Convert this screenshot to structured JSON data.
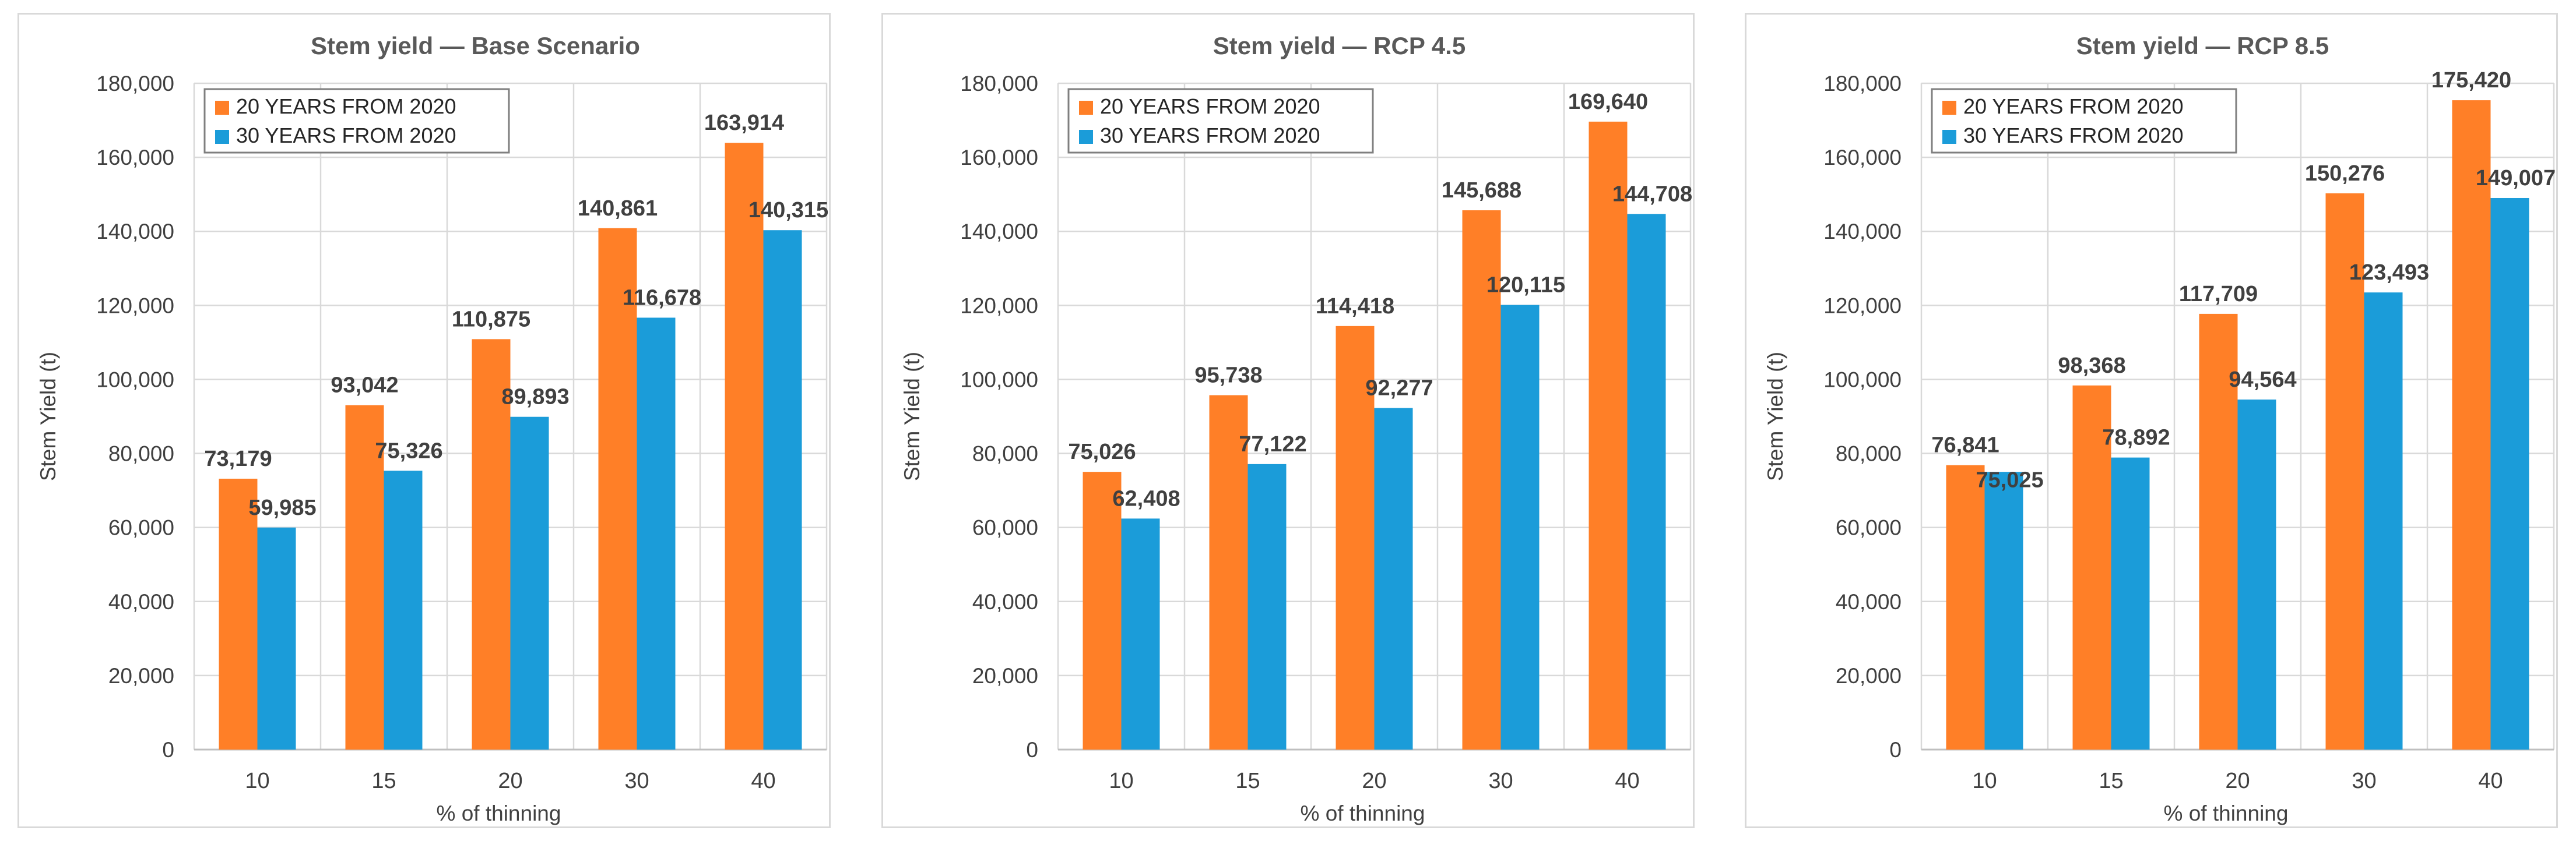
{
  "colors": {
    "series_20": "#FF7F27",
    "series_30": "#1B9CD9"
  },
  "chart_data": [
    {
      "type": "bar",
      "title": "Stem yield — Base Scenario",
      "xlabel": "% of thinning",
      "ylabel": "Stem Yield (t)",
      "ylim": [
        0,
        180000
      ],
      "yticks": [
        "0",
        "20,000",
        "40,000",
        "60,000",
        "80,000",
        "100,000",
        "120,000",
        "140,000",
        "160,000",
        "180,000"
      ],
      "grid": true,
      "legend_position": "top-left",
      "categories": [
        "10",
        "15",
        "20",
        "30",
        "40"
      ],
      "series": [
        {
          "name": "20 YEARS FROM 2020",
          "values": [
            73179,
            93042,
            110875,
            140861,
            163914
          ],
          "labels": [
            "73,179",
            "93,042",
            "110,875",
            "140,861",
            "163,914"
          ]
        },
        {
          "name": "30 YEARS FROM 2020",
          "values": [
            59985,
            75326,
            89893,
            116678,
            140315
          ],
          "labels": [
            "59,985",
            "75,326",
            "89,893",
            "116,678",
            "140,315"
          ]
        }
      ]
    },
    {
      "type": "bar",
      "title": "Stem yield — RCP 4.5",
      "xlabel": "% of thinning",
      "ylabel": "Stem Yield (t)",
      "ylim": [
        0,
        180000
      ],
      "yticks": [
        "0",
        "20,000",
        "40,000",
        "60,000",
        "80,000",
        "100,000",
        "120,000",
        "140,000",
        "160,000",
        "180,000"
      ],
      "grid": true,
      "legend_position": "top-left",
      "categories": [
        "10",
        "15",
        "20",
        "30",
        "40"
      ],
      "series": [
        {
          "name": "20 YEARS FROM 2020",
          "values": [
            75026,
            95738,
            114418,
            145688,
            169640
          ],
          "labels": [
            "75,026",
            "95,738",
            "114,418",
            "145,688",
            "169,640"
          ]
        },
        {
          "name": "30 YEARS FROM 2020",
          "values": [
            62408,
            77122,
            92277,
            120115,
            144708
          ],
          "labels": [
            "62,408",
            "77,122",
            "92,277",
            "120,115",
            "144,708"
          ]
        }
      ]
    },
    {
      "type": "bar",
      "title": "Stem yield — RCP 8.5",
      "xlabel": "% of thinning",
      "ylabel": "Stem Yield (t)",
      "ylim": [
        0,
        180000
      ],
      "yticks": [
        "0",
        "20,000",
        "40,000",
        "60,000",
        "80,000",
        "100,000",
        "120,000",
        "140,000",
        "160,000",
        "180,000"
      ],
      "grid": true,
      "legend_position": "top-left",
      "categories": [
        "10",
        "15",
        "20",
        "30",
        "40"
      ],
      "series": [
        {
          "name": "20 YEARS FROM 2020",
          "values": [
            76841,
            98368,
            117709,
            150276,
            175420
          ],
          "labels": [
            "76,841",
            "98,368",
            "117,709",
            "150,276",
            "175,420"
          ]
        },
        {
          "name": "30 YEARS FROM 2020",
          "values": [
            75025,
            78892,
            94564,
            123493,
            149007
          ],
          "labels": [
            "75,025",
            "78,892",
            "94,564",
            "123,493",
            "149,007"
          ]
        }
      ]
    }
  ]
}
